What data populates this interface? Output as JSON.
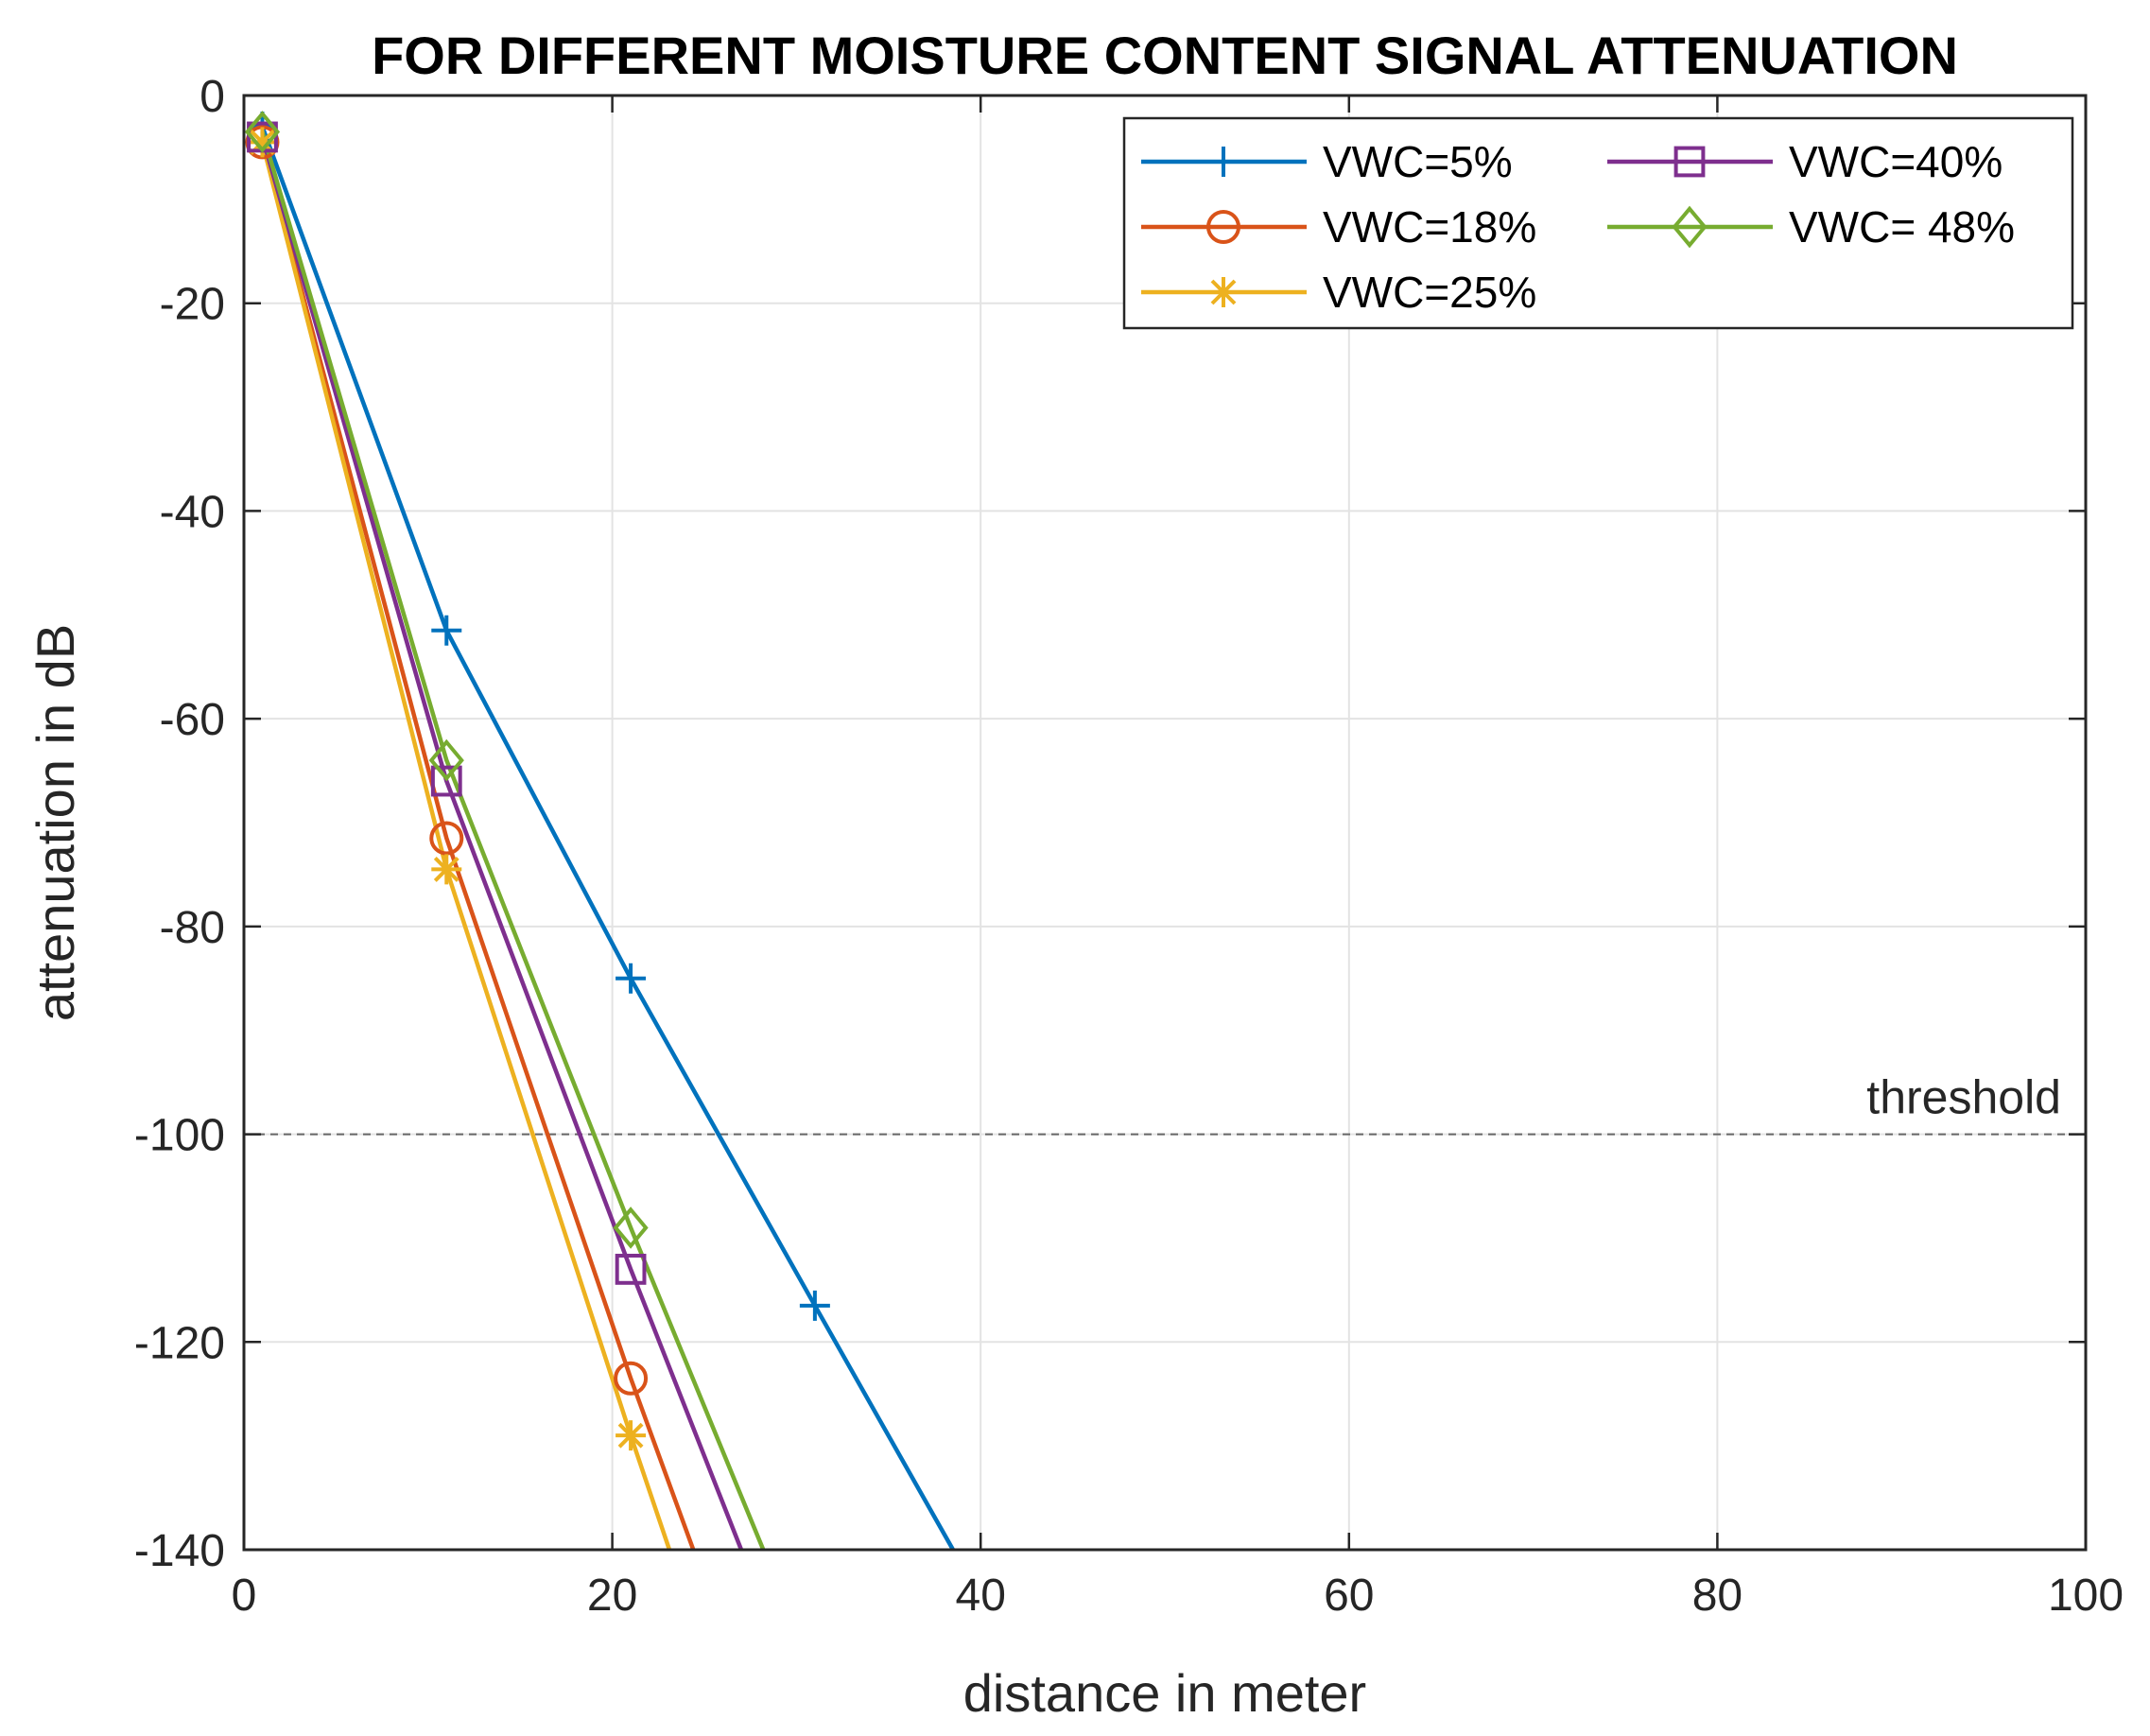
{
  "chart_data": {
    "type": "line",
    "title": "FOR DIFFERENT MOISTURE CONTENT SIGNAL ATTENUATION",
    "xlabel": "distance in meter",
    "ylabel": "attenuation in dB",
    "xlim": [
      0,
      100
    ],
    "ylim": [
      -140,
      0
    ],
    "xticks": [
      0,
      20,
      40,
      60,
      80,
      100
    ],
    "yticks": [
      0,
      -20,
      -40,
      -60,
      -80,
      -100,
      -120,
      -140
    ],
    "grid": true,
    "legend_position": "top-right",
    "threshold": {
      "value": -100,
      "label": "threshold",
      "color": "#666666"
    },
    "series": [
      {
        "name": "VWC=5%",
        "color": "#0072BD",
        "marker": "plus",
        "x": [
          1,
          11,
          21,
          31,
          38.5
        ],
        "y": [
          -3,
          -51.5,
          -85,
          -116.5,
          -140
        ]
      },
      {
        "name": "VWC=18%",
        "color": "#D95319",
        "marker": "circle",
        "x": [
          1,
          11,
          21,
          24.4
        ],
        "y": [
          -4.5,
          -71.5,
          -123.5,
          -140
        ]
      },
      {
        "name": "VWC=25%",
        "color": "#EDB120",
        "marker": "asterisk",
        "x": [
          1,
          11,
          21,
          23.1
        ],
        "y": [
          -4.5,
          -74.5,
          -129,
          -140
        ]
      },
      {
        "name": "VWC=40%",
        "color": "#7E2F8E",
        "marker": "square",
        "x": [
          1,
          11,
          21,
          27
        ],
        "y": [
          -4,
          -66,
          -113,
          -140
        ]
      },
      {
        "name": "VWC= 48%",
        "color": "#77AC30",
        "marker": "diamond",
        "x": [
          1,
          11,
          21,
          28.2
        ],
        "y": [
          -3.5,
          -64,
          -109,
          -140
        ]
      }
    ]
  }
}
